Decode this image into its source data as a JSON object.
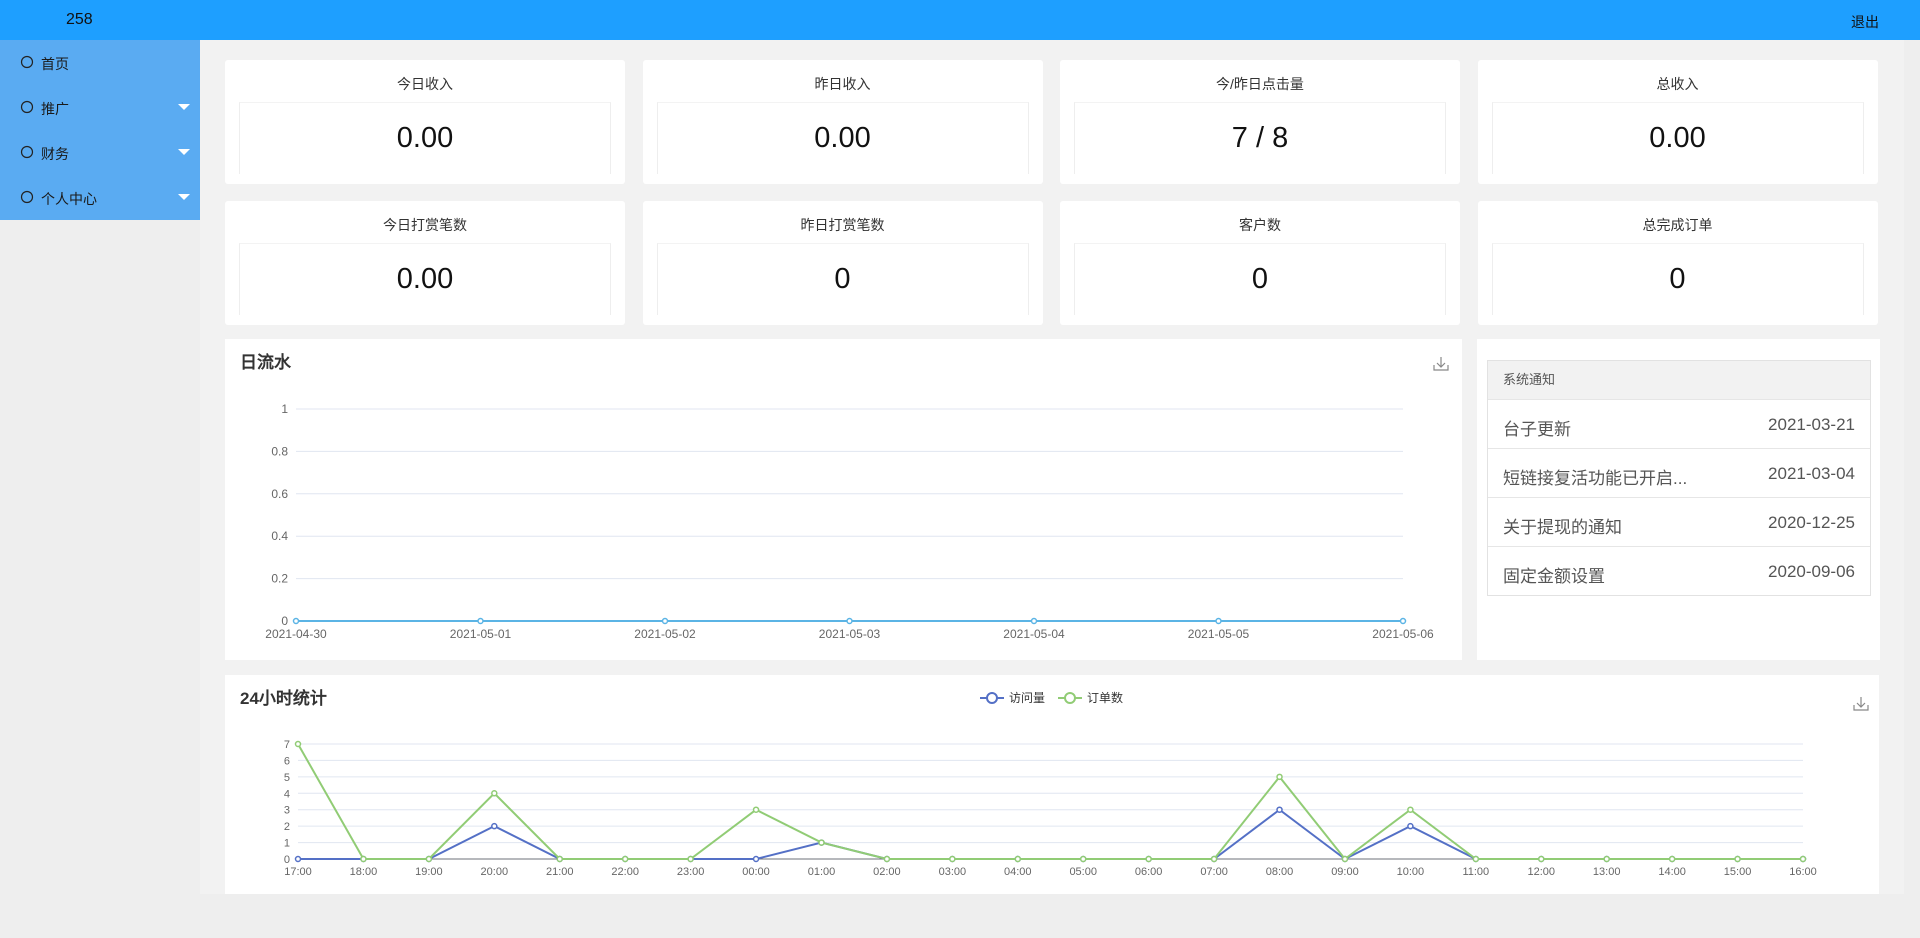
{
  "header": {
    "title": "258",
    "logout": "退出"
  },
  "sidebar": {
    "items": [
      "首页",
      "推广",
      "财务",
      "个人中心"
    ]
  },
  "stats": [
    {
      "label": "今日收入",
      "value": "0.00"
    },
    {
      "label": "昨日收入",
      "value": "0.00"
    },
    {
      "label": "今/昨日点击量",
      "value": "7 / 8"
    },
    {
      "label": "总收入",
      "value": "0.00"
    },
    {
      "label": "今日打赏笔数",
      "value": "0.00"
    },
    {
      "label": "昨日打赏笔数",
      "value": "0"
    },
    {
      "label": "客户数",
      "value": "0"
    },
    {
      "label": "总完成订单",
      "value": "0"
    }
  ],
  "notices": {
    "title": "系统通知",
    "items": [
      {
        "title": "台子更新",
        "date": "2021-03-21"
      },
      {
        "title": "短链接复活功能已开启...",
        "date": "2021-03-04"
      },
      {
        "title": "关于提现的通知",
        "date": "2020-12-25"
      },
      {
        "title": "固定金额设置",
        "date": "2020-09-06"
      }
    ]
  },
  "chart_data": [
    {
      "type": "line",
      "title": "日流水",
      "categories": [
        "2021-04-30",
        "2021-05-01",
        "2021-05-02",
        "2021-05-03",
        "2021-05-04",
        "2021-05-05",
        "2021-05-06"
      ],
      "values": [
        0,
        0,
        0,
        0,
        0,
        0,
        0
      ],
      "color": "#5bb4e5",
      "ylim": [
        0,
        1
      ],
      "yticks": [
        0,
        0.2,
        0.4,
        0.6,
        0.8,
        1
      ],
      "grid": true
    },
    {
      "type": "line",
      "title": "24小时统计",
      "categories": [
        "17:00",
        "18:00",
        "19:00",
        "20:00",
        "21:00",
        "22:00",
        "23:00",
        "00:00",
        "01:00",
        "02:00",
        "03:00",
        "04:00",
        "05:00",
        "06:00",
        "07:00",
        "08:00",
        "09:00",
        "10:00",
        "11:00",
        "12:00",
        "13:00",
        "14:00",
        "15:00",
        "16:00"
      ],
      "series": [
        {
          "name": "访问量",
          "color": "#5470c6",
          "values": [
            0,
            0,
            0,
            2,
            0,
            0,
            0,
            0,
            1,
            0,
            0,
            0,
            0,
            0,
            0,
            3,
            0,
            2,
            0,
            0,
            0,
            0,
            0,
            0
          ]
        },
        {
          "name": "订单数",
          "color": "#91cc75",
          "values": [
            7,
            0,
            0,
            4,
            0,
            0,
            0,
            3,
            1,
            0,
            0,
            0,
            0,
            0,
            0,
            5,
            0,
            3,
            0,
            0,
            0,
            0,
            0,
            0
          ]
        }
      ],
      "ylim": [
        0,
        7
      ],
      "yticks": [
        0,
        1,
        2,
        3,
        4,
        5,
        6,
        7
      ],
      "grid": true,
      "legend": "top"
    }
  ]
}
